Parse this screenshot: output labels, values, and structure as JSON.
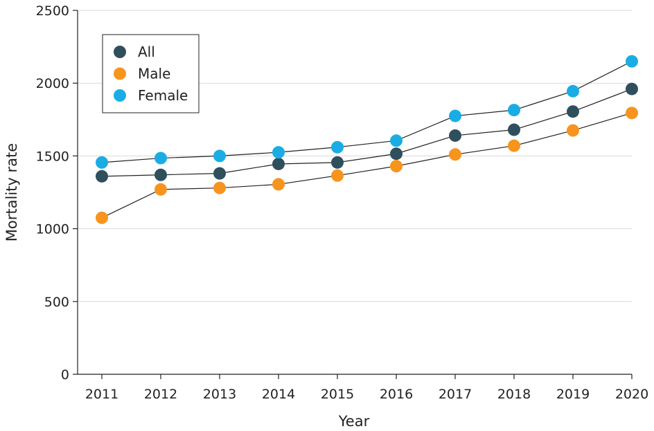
{
  "chart_data": {
    "type": "line",
    "title": "",
    "xlabel": "Year",
    "ylabel": "Mortality rate",
    "x": [
      2011,
      2012,
      2013,
      2014,
      2015,
      2016,
      2017,
      2018,
      2019,
      2020
    ],
    "x_tick_labels": [
      "2011",
      "2012",
      "2013",
      "2014",
      "2015",
      "2016",
      "2017",
      "2018",
      "2019",
      "2020"
    ],
    "ylim": [
      0,
      2500
    ],
    "y_ticks": [
      0,
      500,
      1000,
      1500,
      2000,
      2500
    ],
    "y_tick_labels": [
      "0",
      "500",
      "1000",
      "1500",
      "2000",
      "2500"
    ],
    "grid": "horizontal",
    "legend_position": "top-left",
    "series": [
      {
        "name": "All",
        "color": "#2f4f5d",
        "values": [
          1360,
          1370,
          1380,
          1445,
          1455,
          1515,
          1640,
          1680,
          1805,
          1960
        ]
      },
      {
        "name": "Male",
        "color": "#f7941d",
        "values": [
          1075,
          1270,
          1280,
          1305,
          1365,
          1430,
          1510,
          1570,
          1675,
          1795
        ]
      },
      {
        "name": "Female",
        "color": "#1aade4",
        "values": [
          1455,
          1485,
          1500,
          1525,
          1560,
          1605,
          1775,
          1815,
          1945,
          2150
        ]
      }
    ]
  }
}
